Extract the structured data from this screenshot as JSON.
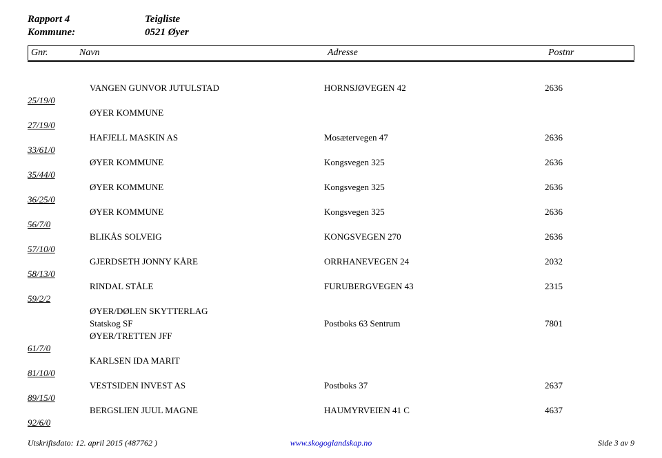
{
  "header": {
    "report_label": "Rapport 4",
    "report_value": "Teigliste",
    "kommune_label": "Kommune:",
    "kommune_value": "0521 Øyer"
  },
  "columns": {
    "gnr": "Gnr.",
    "navn": "Navn",
    "adresse": "Adresse",
    "postnr": "Postnr"
  },
  "rows": [
    {
      "gnr": "",
      "navn": "VANGEN GUNVOR JUTULSTAD",
      "adresse": "HORNSJØVEGEN 42",
      "postnr": "2636"
    },
    {
      "gnr": "25/19/0",
      "navn": "",
      "adresse": "",
      "postnr": ""
    },
    {
      "gnr": "",
      "navn": "ØYER KOMMUNE",
      "adresse": "",
      "postnr": ""
    },
    {
      "gnr": "27/19/0",
      "navn": "",
      "adresse": "",
      "postnr": ""
    },
    {
      "gnr": "",
      "navn": "HAFJELL MASKIN AS",
      "adresse": "Mosætervegen 47",
      "postnr": "2636"
    },
    {
      "gnr": "33/61/0",
      "navn": "",
      "adresse": "",
      "postnr": ""
    },
    {
      "gnr": "",
      "navn": "ØYER KOMMUNE",
      "adresse": "Kongsvegen 325",
      "postnr": "2636"
    },
    {
      "gnr": "35/44/0",
      "navn": "",
      "adresse": "",
      "postnr": ""
    },
    {
      "gnr": "",
      "navn": "ØYER KOMMUNE",
      "adresse": "Kongsvegen 325",
      "postnr": "2636"
    },
    {
      "gnr": "36/25/0",
      "navn": "",
      "adresse": "",
      "postnr": ""
    },
    {
      "gnr": "",
      "navn": "ØYER KOMMUNE",
      "adresse": "Kongsvegen 325",
      "postnr": "2636"
    },
    {
      "gnr": "56/7/0",
      "navn": "",
      "adresse": "",
      "postnr": ""
    },
    {
      "gnr": "",
      "navn": "BLIKÅS SOLVEIG",
      "adresse": "KONGSVEGEN 270",
      "postnr": "2636"
    },
    {
      "gnr": "57/10/0",
      "navn": "",
      "adresse": "",
      "postnr": ""
    },
    {
      "gnr": "",
      "navn": "GJERDSETH JONNY KÅRE",
      "adresse": "ORRHANEVEGEN 24",
      "postnr": "2032"
    },
    {
      "gnr": "58/13/0",
      "navn": "",
      "adresse": "",
      "postnr": ""
    },
    {
      "gnr": "",
      "navn": "RINDAL STÅLE",
      "adresse": "FURUBERGVEGEN 43",
      "postnr": "2315"
    },
    {
      "gnr": "59/2/2",
      "navn": "",
      "adresse": "",
      "postnr": ""
    },
    {
      "gnr": "",
      "navn": "ØYER/DØLEN SKYTTERLAG",
      "adresse": "",
      "postnr": ""
    },
    {
      "gnr": "",
      "navn": "Statskog SF",
      "adresse": "Postboks 63 Sentrum",
      "postnr": "7801"
    },
    {
      "gnr": "",
      "navn": "ØYER/TRETTEN JFF",
      "adresse": "",
      "postnr": ""
    },
    {
      "gnr": "61/7/0",
      "navn": "",
      "adresse": "",
      "postnr": ""
    },
    {
      "gnr": "",
      "navn": "KARLSEN IDA MARIT",
      "adresse": "",
      "postnr": ""
    },
    {
      "gnr": "81/10/0",
      "navn": "",
      "adresse": "",
      "postnr": ""
    },
    {
      "gnr": "",
      "navn": "VESTSIDEN INVEST AS",
      "adresse": "Postboks 37",
      "postnr": "2637"
    },
    {
      "gnr": "89/15/0",
      "navn": "",
      "adresse": "",
      "postnr": ""
    },
    {
      "gnr": "",
      "navn": "BERGSLIEN JUUL MAGNE",
      "adresse": "HAUMYRVEIEN 41 C",
      "postnr": "4637"
    },
    {
      "gnr": "92/6/0",
      "navn": "",
      "adresse": "",
      "postnr": ""
    }
  ],
  "footer": {
    "left": "Utskriftsdato: 12. april 2015 (487762 )",
    "center": "www.skogoglandskap.no",
    "right": "Side 3 av 9"
  }
}
